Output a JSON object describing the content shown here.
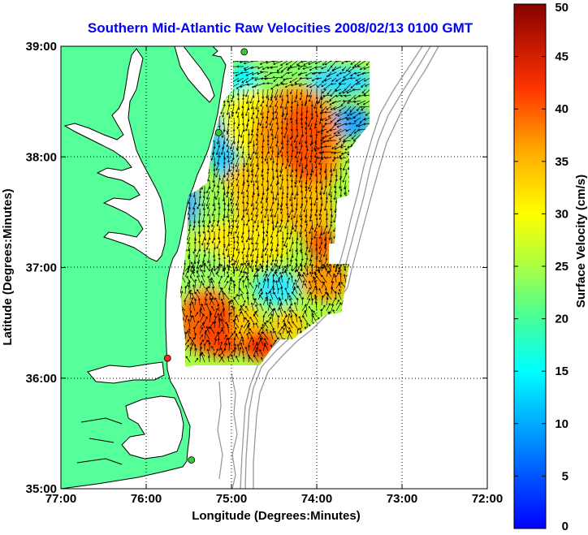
{
  "title": "Southern Mid-Atlantic Raw Velocities 2008/02/13 0100 GMT",
  "x_axis": {
    "label": "Longitude (Degrees:Minutes)",
    "ticks": [
      "77:00",
      "76:00",
      "75:00",
      "74:00",
      "73:00",
      "72:00"
    ],
    "values": [
      -77,
      -76,
      -75,
      -74,
      -73,
      -72
    ],
    "range": [
      -77,
      -72
    ]
  },
  "y_axis": {
    "label": "Latitude (Degrees:Minutes)",
    "ticks": [
      "39:00",
      "38:00",
      "37:00",
      "36:00",
      "35:00"
    ],
    "values": [
      39,
      38,
      37,
      36,
      35
    ],
    "range": [
      35,
      39
    ]
  },
  "colorbar": {
    "label": "Surface Velocity (cm/s)",
    "ticks": [
      "50",
      "45",
      "40",
      "35",
      "30",
      "25",
      "20",
      "15",
      "10",
      "5",
      "0"
    ],
    "range": [
      0,
      50
    ],
    "colormap": "jet"
  },
  "colors": {
    "land": "#55ff99",
    "coastline": "#000000",
    "bathymetry": "#999999",
    "title": "#0000ff",
    "grid": "#000000"
  },
  "grid": "dotted",
  "stations": [
    {
      "lon": -74.85,
      "lat": 38.95,
      "color": "#33cc33"
    },
    {
      "lon": -75.15,
      "lat": 38.22,
      "color": "#33cc33"
    },
    {
      "lon": -75.75,
      "lat": 36.18,
      "color": "#ff2222"
    },
    {
      "lon": -75.47,
      "lat": 35.26,
      "color": "#33cc33"
    }
  ]
}
